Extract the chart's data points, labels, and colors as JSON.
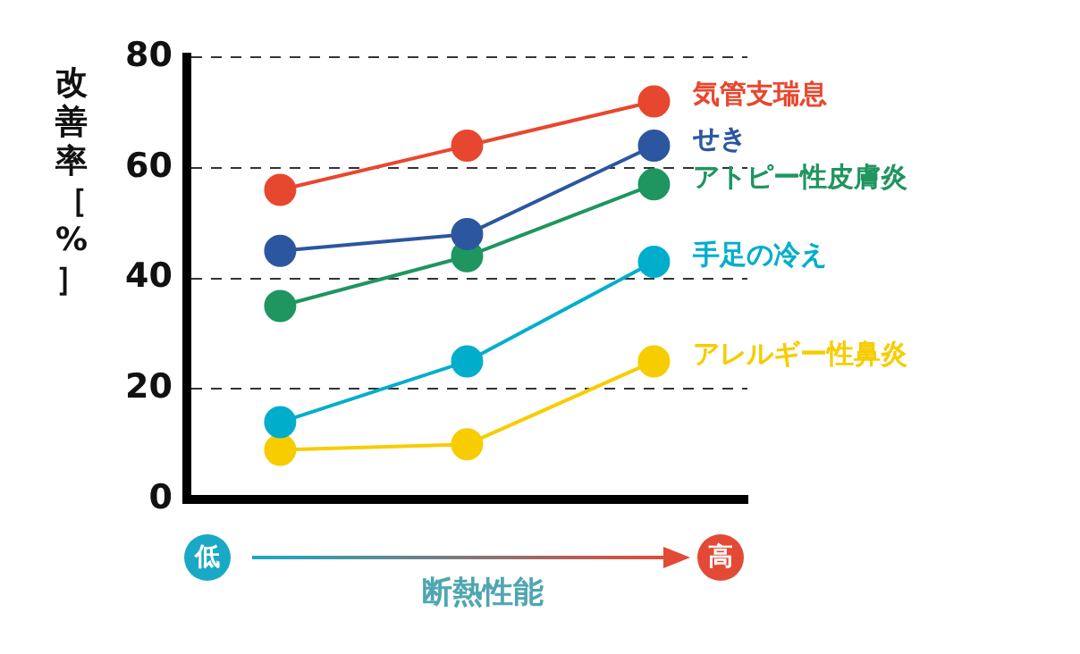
{
  "chart_data": {
    "type": "line",
    "ylabel": "改善率［%］",
    "xlabel": "断熱性能",
    "categories": [
      null,
      null,
      null
    ],
    "series": [
      {
        "name": "気管支瑞息",
        "color": "#e8472f",
        "values": [
          56,
          64,
          72
        ]
      },
      {
        "name": "せき",
        "color": "#2c56a0",
        "values": [
          45,
          48,
          64
        ]
      },
      {
        "name": "アトピー性皮膚炎",
        "color": "#1f9560",
        "values": [
          35,
          44,
          57
        ]
      },
      {
        "name": "手足の冷え",
        "color": "#00aecb",
        "values": [
          14,
          25,
          43
        ]
      },
      {
        "name": "アレルギー性鼻炎",
        "color": "#f7cc00",
        "values": [
          9,
          10,
          25
        ]
      }
    ],
    "ylim": [
      0,
      80
    ],
    "yticks": [
      0,
      20,
      40,
      60,
      80
    ],
    "grid": "y",
    "marker": "circle",
    "line_style": "solid",
    "legend": false,
    "annotations": [
      "低",
      "高"
    ]
  }
}
